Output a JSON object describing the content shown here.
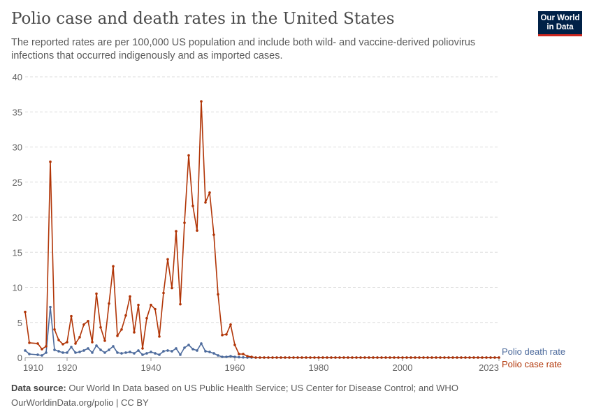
{
  "header": {
    "title": "Polio case and death rates in the United States",
    "subtitle": "The reported rates are per 100,000 US population and include both wild- and vaccine-derived poliovirus infections that occurred indigenously and as imported cases.",
    "logo_text": "Our World in Data"
  },
  "footer": {
    "source_label": "Data source:",
    "source_text": "Our World In Data based on US Public Health Service; US Center for Disease Control; and WHO",
    "url": "OurWorldinData.org/polio | CC BY"
  },
  "chart_data": {
    "type": "line",
    "title": "Polio case and death rates in the United States",
    "xlim": [
      1910,
      2023
    ],
    "ylim": [
      0,
      40
    ],
    "grid": "horizontal dashed",
    "legend": "right, labels at line ends",
    "y_ticks": [
      0,
      5,
      10,
      15,
      20,
      25,
      30,
      35,
      40
    ],
    "x_ticks": [
      1910,
      1920,
      1940,
      1960,
      1980,
      2000,
      2023
    ],
    "x": [
      1910,
      1911,
      1913,
      1914,
      1915,
      1916,
      1917,
      1918,
      1919,
      1920,
      1921,
      1922,
      1923,
      1924,
      1925,
      1926,
      1927,
      1928,
      1929,
      1930,
      1931,
      1932,
      1933,
      1934,
      1935,
      1936,
      1937,
      1938,
      1939,
      1940,
      1941,
      1942,
      1943,
      1944,
      1945,
      1946,
      1947,
      1948,
      1949,
      1950,
      1951,
      1952,
      1953,
      1954,
      1955,
      1956,
      1957,
      1958,
      1959,
      1960,
      1961,
      1962,
      1963,
      1964,
      1965,
      1966,
      1967,
      1968,
      1969,
      1970,
      1971,
      1972,
      1973,
      1974,
      1975,
      1976,
      1977,
      1978,
      1979,
      1980,
      1981,
      1982,
      1983,
      1984,
      1985,
      1986,
      1987,
      1988,
      1989,
      1990,
      1991,
      1992,
      1993,
      1994,
      1995,
      1996,
      1997,
      1998,
      1999,
      2000,
      2001,
      2002,
      2003,
      2004,
      2005,
      2006,
      2007,
      2008,
      2009,
      2010,
      2011,
      2012,
      2013,
      2014,
      2015,
      2016,
      2017,
      2018,
      2019,
      2020,
      2021,
      2022,
      2023
    ],
    "series": [
      {
        "name": "Polio death rate",
        "color": "#4c6a9c",
        "values": [
          1.0,
          0.5,
          0.4,
          0.3,
          0.7,
          7.2,
          1.1,
          0.9,
          0.7,
          0.7,
          1.5,
          0.7,
          0.8,
          1.0,
          1.3,
          0.7,
          1.7,
          1.1,
          0.7,
          1.1,
          1.6,
          0.7,
          0.6,
          0.7,
          0.8,
          0.6,
          1.0,
          0.4,
          0.6,
          0.8,
          0.6,
          0.4,
          0.9,
          1.0,
          0.9,
          1.3,
          0.4,
          1.4,
          1.8,
          1.2,
          1.0,
          2.0,
          0.9,
          0.8,
          0.6,
          0.3,
          0.1,
          0.1,
          0.2,
          0.1,
          0.05,
          0.02,
          0.01,
          0.01,
          0,
          0,
          0,
          0,
          0,
          0,
          0,
          0,
          0,
          0,
          0,
          0,
          0,
          0,
          0,
          0,
          0,
          0,
          0,
          0,
          0,
          0,
          0,
          0,
          0,
          0,
          0,
          0,
          0,
          0,
          0,
          0,
          0,
          0,
          0,
          0,
          0,
          0,
          0,
          0,
          0,
          0,
          0,
          0,
          0,
          0,
          0,
          0,
          0,
          0,
          0,
          0,
          0,
          0,
          0,
          0,
          0,
          0,
          0
        ]
      },
      {
        "name": "Polio case rate",
        "color": "#b13507",
        "values": [
          6.5,
          2.1,
          2.0,
          1.2,
          1.6,
          27.9,
          4.0,
          2.5,
          1.9,
          2.2,
          5.9,
          2.0,
          2.9,
          4.7,
          5.2,
          2.2,
          9.1,
          4.3,
          2.4,
          7.7,
          13.0,
          3.1,
          4.0,
          6.0,
          8.7,
          3.6,
          7.5,
          1.3,
          5.6,
          7.5,
          6.9,
          3.0,
          9.2,
          14.0,
          9.9,
          18.0,
          7.6,
          19.2,
          28.8,
          21.6,
          18.1,
          36.5,
          22.1,
          23.5,
          17.5,
          9.0,
          3.2,
          3.3,
          4.7,
          1.8,
          0.5,
          0.5,
          0.2,
          0.1,
          0,
          0,
          0,
          0,
          0,
          0,
          0,
          0,
          0,
          0,
          0,
          0,
          0,
          0,
          0,
          0,
          0,
          0,
          0,
          0,
          0,
          0,
          0,
          0,
          0,
          0,
          0,
          0,
          0,
          0,
          0,
          0,
          0,
          0,
          0,
          0,
          0,
          0,
          0,
          0,
          0,
          0,
          0,
          0,
          0,
          0,
          0,
          0,
          0,
          0,
          0,
          0,
          0,
          0,
          0,
          0,
          0,
          0,
          0
        ]
      }
    ]
  }
}
